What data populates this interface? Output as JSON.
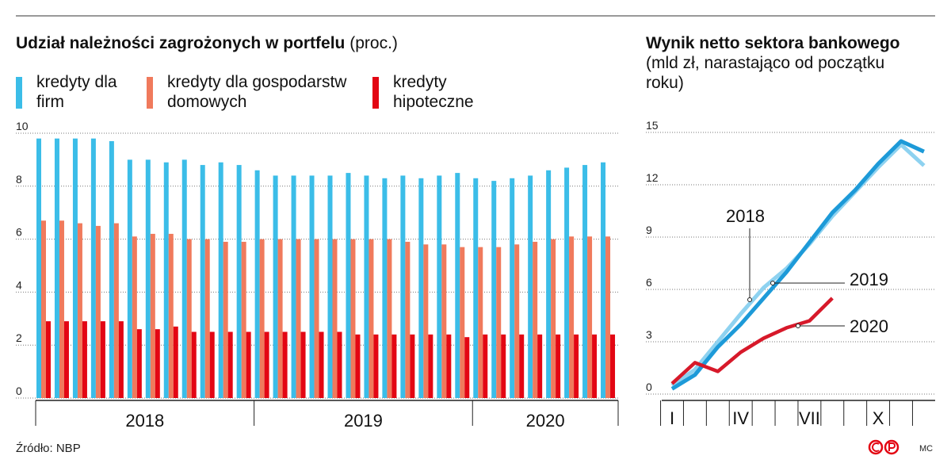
{
  "chart_data": [
    {
      "type": "bar",
      "title": "Udział należności zagrożonych w portfelu",
      "subtitle": "(proc.)",
      "categories": [
        null,
        null,
        null,
        null,
        null,
        null,
        null,
        null,
        null,
        null,
        null,
        null,
        null,
        null,
        null,
        null,
        null,
        null,
        null,
        null,
        null,
        null,
        null,
        null,
        null,
        null,
        null,
        null,
        null,
        null,
        null,
        null
      ],
      "x_groups": [
        {
          "label": "2018",
          "span": 12
        },
        {
          "label": "2019",
          "span": 12
        },
        {
          "label": "2020",
          "span": 8
        }
      ],
      "series": [
        {
          "name": "kredyty dla firm",
          "color": "#3bbde8",
          "values": [
            9.8,
            9.8,
            9.8,
            9.8,
            9.7,
            9.0,
            9.0,
            8.9,
            9.0,
            8.8,
            8.9,
            8.8,
            8.6,
            8.4,
            8.4,
            8.4,
            8.4,
            8.5,
            8.4,
            8.3,
            8.4,
            8.3,
            8.4,
            8.5,
            8.3,
            8.2,
            8.3,
            8.4,
            8.6,
            8.7,
            8.8,
            8.9
          ]
        },
        {
          "name": "kredyty dla gospo­darstw domowych",
          "color": "#f07a5c",
          "values": [
            6.7,
            6.7,
            6.6,
            6.5,
            6.6,
            6.1,
            6.2,
            6.2,
            6.0,
            6.0,
            5.9,
            5.9,
            6.0,
            6.0,
            6.0,
            6.0,
            6.0,
            6.0,
            6.0,
            6.0,
            5.9,
            5.8,
            5.8,
            5.7,
            5.7,
            5.7,
            5.8,
            5.9,
            6.0,
            6.1,
            6.1,
            6.1
          ]
        },
        {
          "name": "kredyty hipoteczne",
          "color": "#e30613",
          "values": [
            2.9,
            2.9,
            2.9,
            2.9,
            2.9,
            2.6,
            2.6,
            2.7,
            2.5,
            2.5,
            2.5,
            2.5,
            2.5,
            2.5,
            2.5,
            2.5,
            2.5,
            2.4,
            2.4,
            2.4,
            2.4,
            2.4,
            2.4,
            2.3,
            2.4,
            2.4,
            2.4,
            2.4,
            2.4,
            2.4,
            2.4,
            2.4
          ]
        }
      ],
      "ylim": [
        0,
        10
      ],
      "yticks": [
        0,
        2,
        4,
        6,
        8,
        10
      ],
      "grid": true
    },
    {
      "type": "line",
      "title": "Wynik netto sektora bankowego",
      "subtitle": "(mld zł, narastająco od początku roku)",
      "categories": [
        "I",
        null,
        null,
        "IV",
        null,
        null,
        "VII",
        null,
        null,
        "X",
        null,
        null
      ],
      "series": [
        {
          "name": "2018",
          "color": "#8ed2f0",
          "values": [
            0.5,
            1.4,
            3.0,
            4.6,
            6.1,
            7.2,
            8.6,
            10.2,
            11.6,
            13.0,
            14.3,
            13.1
          ]
        },
        {
          "name": "2019",
          "color": "#1d9ad8",
          "values": [
            0.3,
            1.1,
            2.7,
            4.0,
            5.5,
            7.0,
            8.7,
            10.4,
            11.7,
            13.2,
            14.5,
            13.9
          ]
        },
        {
          "name": "2020",
          "color": "#d7192a",
          "values": [
            0.6,
            1.8,
            1.3,
            2.4,
            3.2,
            3.8,
            4.2,
            5.5,
            null,
            null,
            null,
            null
          ]
        }
      ],
      "ylim": [
        0,
        15
      ],
      "yticks": [
        0,
        3,
        6,
        9,
        12,
        15
      ],
      "grid": true
    }
  ],
  "source": "Źródło: NBP",
  "credit": "MC"
}
